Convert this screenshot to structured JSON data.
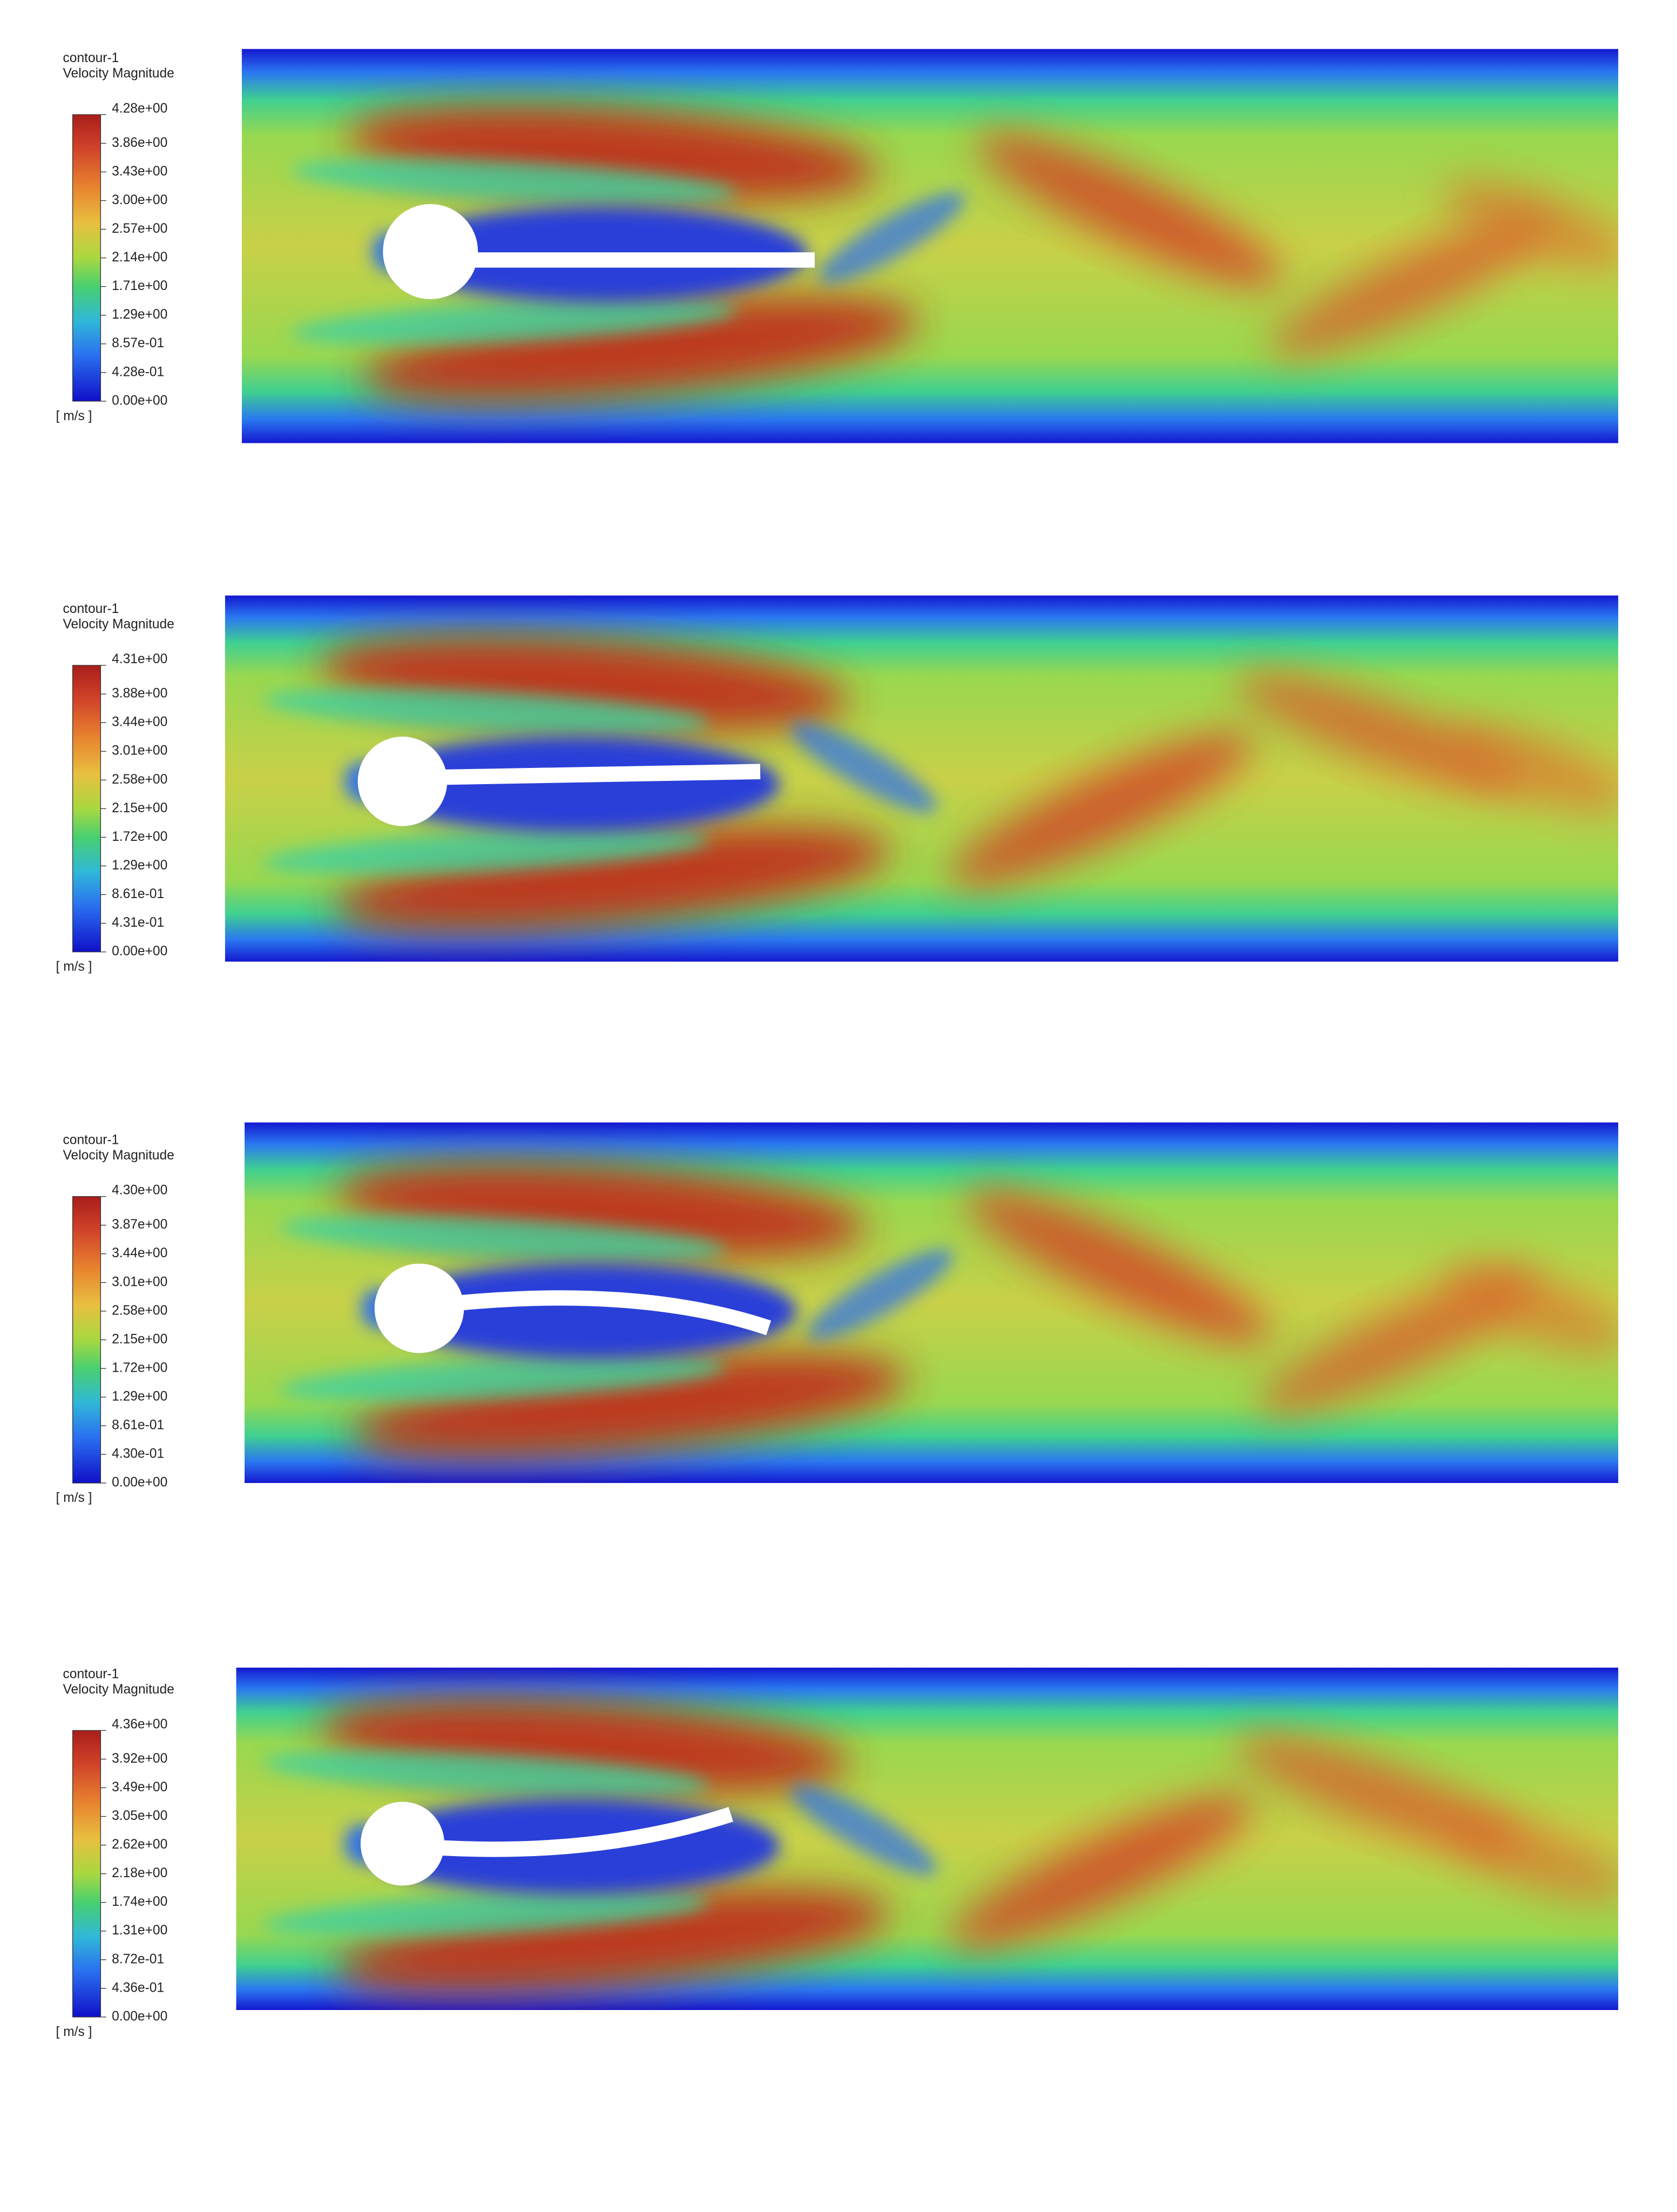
{
  "panels": [
    {
      "title": "contour-1",
      "variable": "Velocity Magnitude",
      "unit": "[ m/s ]",
      "ticks": [
        "4.28e+00",
        "3.86e+00",
        "3.43e+00",
        "3.00e+00",
        "2.57e+00",
        "2.14e+00",
        "1.71e+00",
        "1.29e+00",
        "8.57e-01",
        "4.28e-01",
        "0.00e+00"
      ]
    },
    {
      "title": "contour-1",
      "variable": "Velocity Magnitude",
      "unit": "[ m/s ]",
      "ticks": [
        "4.31e+00",
        "3.88e+00",
        "3.44e+00",
        "3.01e+00",
        "2.58e+00",
        "2.15e+00",
        "1.72e+00",
        "1.29e+00",
        "8.61e-01",
        "4.31e-01",
        "0.00e+00"
      ]
    },
    {
      "title": "contour-1",
      "variable": "Velocity Magnitude",
      "unit": "[ m/s ]",
      "ticks": [
        "4.30e+00",
        "3.87e+00",
        "3.44e+00",
        "3.01e+00",
        "2.58e+00",
        "2.15e+00",
        "1.72e+00",
        "1.29e+00",
        "8.61e-01",
        "4.30e-01",
        "0.00e+00"
      ]
    },
    {
      "title": "contour-1",
      "variable": "Velocity Magnitude",
      "unit": "[ m/s ]",
      "ticks": [
        "4.36e+00",
        "3.92e+00",
        "3.49e+00",
        "3.05e+00",
        "2.62e+00",
        "2.18e+00",
        "1.74e+00",
        "1.31e+00",
        "8.72e-01",
        "4.36e-01",
        "0.00e+00"
      ]
    }
  ]
}
